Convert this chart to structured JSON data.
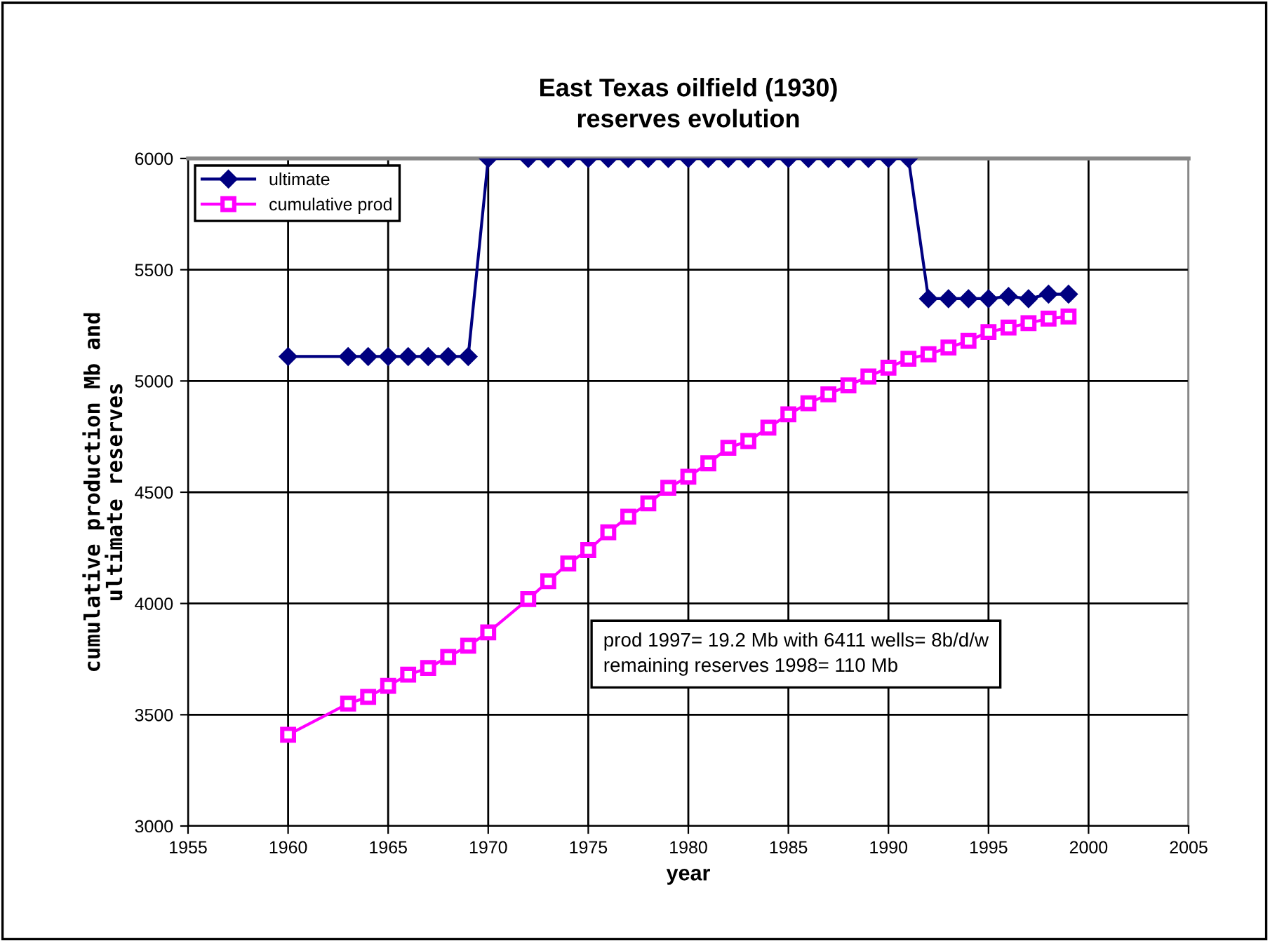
{
  "chart_data": {
    "type": "line",
    "title": "East Texas oilfield (1930)\nreserves evolution",
    "xlabel": "year",
    "ylabel": "cumulative production Mb and\nultimate reserves",
    "xlim": [
      1955,
      2005
    ],
    "xticks": [
      1955,
      1960,
      1965,
      1970,
      1975,
      1980,
      1985,
      1990,
      1995,
      2000,
      2005
    ],
    "ylim": [
      3000,
      6000
    ],
    "yticks": [
      3000,
      3500,
      4000,
      4500,
      5000,
      5500,
      6000
    ],
    "grid": true,
    "legend": "top left",
    "annotations": [
      "prod 1997= 19.2 Mb with 6411 wells= 8b/d/w\nremaining reserves 1998= 110 Mb"
    ],
    "series": [
      {
        "name": "ultimate",
        "color": "#000080",
        "marker": "diamond",
        "x": [
          1960,
          1963,
          1964,
          1965,
          1966,
          1967,
          1968,
          1969,
          1970,
          1972,
          1973,
          1974,
          1975,
          1976,
          1977,
          1978,
          1979,
          1980,
          1981,
          1982,
          1983,
          1984,
          1985,
          1986,
          1987,
          1988,
          1989,
          1990,
          1991,
          1992,
          1993,
          1994,
          1995,
          1996,
          1997,
          1998,
          1999
        ],
        "values": [
          5110,
          5110,
          5110,
          5110,
          5110,
          5110,
          5110,
          5110,
          6000,
          6000,
          6000,
          6000,
          6000,
          6000,
          6000,
          6000,
          6000,
          6000,
          6000,
          6000,
          6000,
          6000,
          6000,
          6000,
          6000,
          6000,
          6000,
          6000,
          6000,
          5370,
          5370,
          5370,
          5370,
          5380,
          5370,
          5390,
          5390
        ]
      },
      {
        "name": "cumulative prod",
        "color": "#ff00ff",
        "marker": "square",
        "x": [
          1960,
          1963,
          1964,
          1965,
          1966,
          1967,
          1968,
          1969,
          1970,
          1972,
          1973,
          1974,
          1975,
          1976,
          1977,
          1978,
          1979,
          1980,
          1981,
          1982,
          1983,
          1984,
          1985,
          1986,
          1987,
          1988,
          1989,
          1990,
          1991,
          1992,
          1993,
          1994,
          1995,
          1996,
          1997,
          1998,
          1999
        ],
        "values": [
          3410,
          3550,
          3580,
          3630,
          3680,
          3710,
          3760,
          3810,
          3870,
          4020,
          4100,
          4180,
          4240,
          4320,
          4390,
          4450,
          4520,
          4570,
          4630,
          4700,
          4730,
          4790,
          4850,
          4900,
          4940,
          4980,
          5020,
          5060,
          5100,
          5120,
          5150,
          5180,
          5220,
          5240,
          5260,
          5280,
          5290
        ]
      }
    ]
  }
}
